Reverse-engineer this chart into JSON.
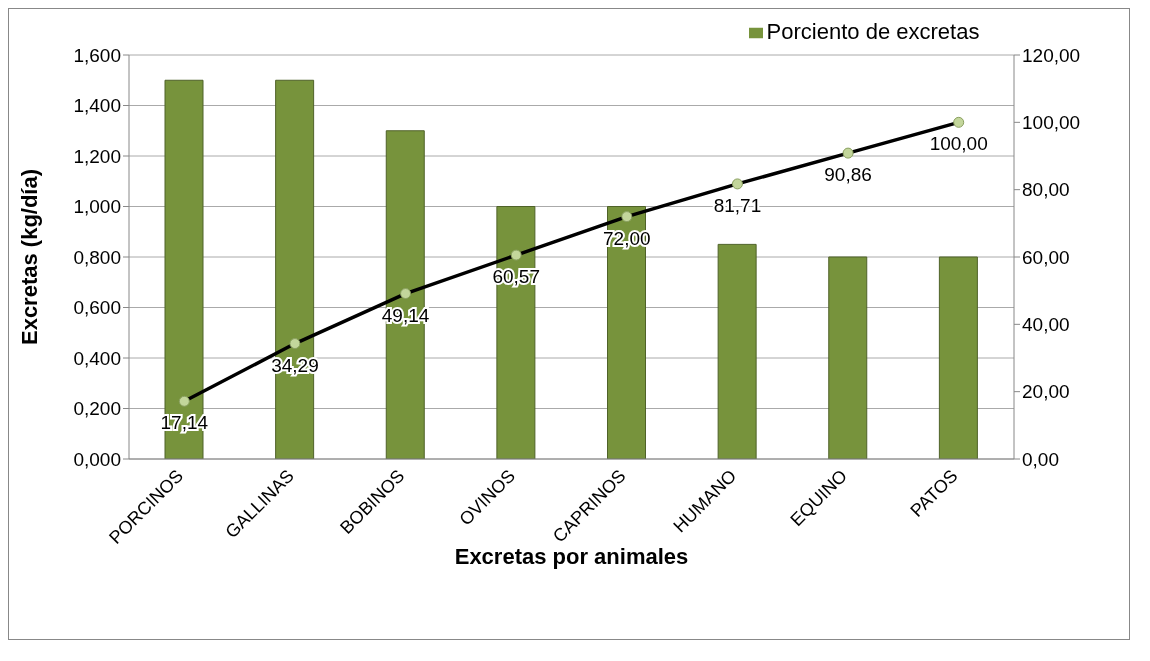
{
  "chart_data": {
    "type": "bar",
    "xlabel": "Excretas por animales",
    "ylabel": "Excretas (kg/día)",
    "categories": [
      "PORCINOS",
      "GALLINAS",
      "BOBINOS",
      "OVINOS",
      "CAPRINOS",
      "HUMANO",
      "EQUINO",
      "PATOS"
    ],
    "series": [
      {
        "name": "Porciento de excretas",
        "color": "#77933c",
        "values": [
          1.5,
          1.5,
          1.3,
          1.0,
          1.0,
          0.85,
          0.8,
          0.8
        ]
      },
      {
        "type": "line",
        "axis": "y2",
        "color": "#000000",
        "marker": "circle",
        "values": [
          17.14,
          34.29,
          49.14,
          60.57,
          72.0,
          81.71,
          90.86,
          100.0
        ],
        "value_labels": [
          "17,14",
          "34,29",
          "49,14",
          "60,57",
          "72,00",
          "81,71",
          "90,86",
          "100,00"
        ]
      }
    ],
    "ylim": [
      0,
      1.6
    ],
    "yticks": [
      {
        "value": 0,
        "label": "0,000"
      },
      {
        "value": 0.2,
        "label": "0,200"
      },
      {
        "value": 0.4,
        "label": "0,400"
      },
      {
        "value": 0.6,
        "label": "0,600"
      },
      {
        "value": 0.8,
        "label": "0,800"
      },
      {
        "value": 1.0,
        "label": "1,000"
      },
      {
        "value": 1.2,
        "label": "1,200"
      },
      {
        "value": 1.4,
        "label": "1,400"
      },
      {
        "value": 1.6,
        "label": "1,600"
      }
    ],
    "y2lim": [
      0,
      120
    ],
    "y2ticks": [
      {
        "value": 0,
        "label": "0,00"
      },
      {
        "value": 20,
        "label": "20,00"
      },
      {
        "value": 40,
        "label": "40,00"
      },
      {
        "value": 60,
        "label": "60,00"
      },
      {
        "value": 80,
        "label": "80,00"
      },
      {
        "value": 100,
        "label": "100,00"
      },
      {
        "value": 120,
        "label": "120,00"
      }
    ],
    "grid": "y",
    "legend": "top"
  }
}
